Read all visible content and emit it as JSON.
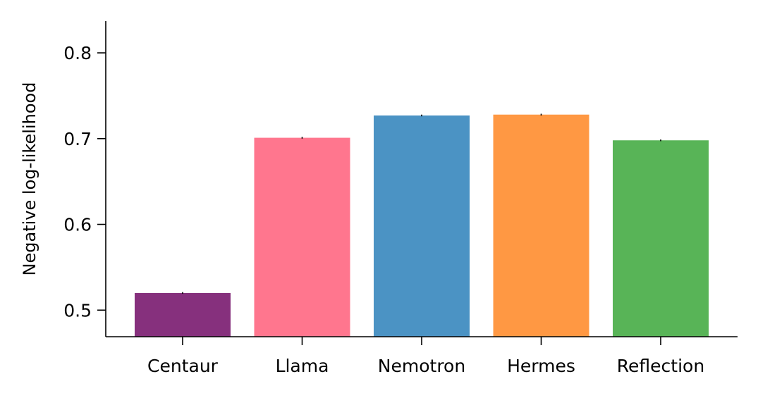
{
  "chart_data": {
    "type": "bar",
    "title": "",
    "xlabel": "",
    "ylabel": "Negative log-likelihood",
    "categories": [
      "Centaur",
      "Llama",
      "Nemotron",
      "Hermes",
      "Reflection"
    ],
    "values": [
      0.52,
      0.701,
      0.727,
      0.728,
      0.698
    ],
    "error": [
      0.001,
      0.001,
      0.001,
      0.001,
      0.001
    ],
    "colors": [
      "#86307d",
      "#ff768e",
      "#4b93c4",
      "#ff9843",
      "#58b457"
    ],
    "ylim": [
      0.469,
      0.837
    ],
    "yticks": [
      0.5,
      0.6,
      0.7,
      0.8
    ],
    "ytick_labels": [
      "0.5",
      "0.6",
      "0.7",
      "0.8"
    ],
    "grid": false,
    "legend": "none"
  }
}
